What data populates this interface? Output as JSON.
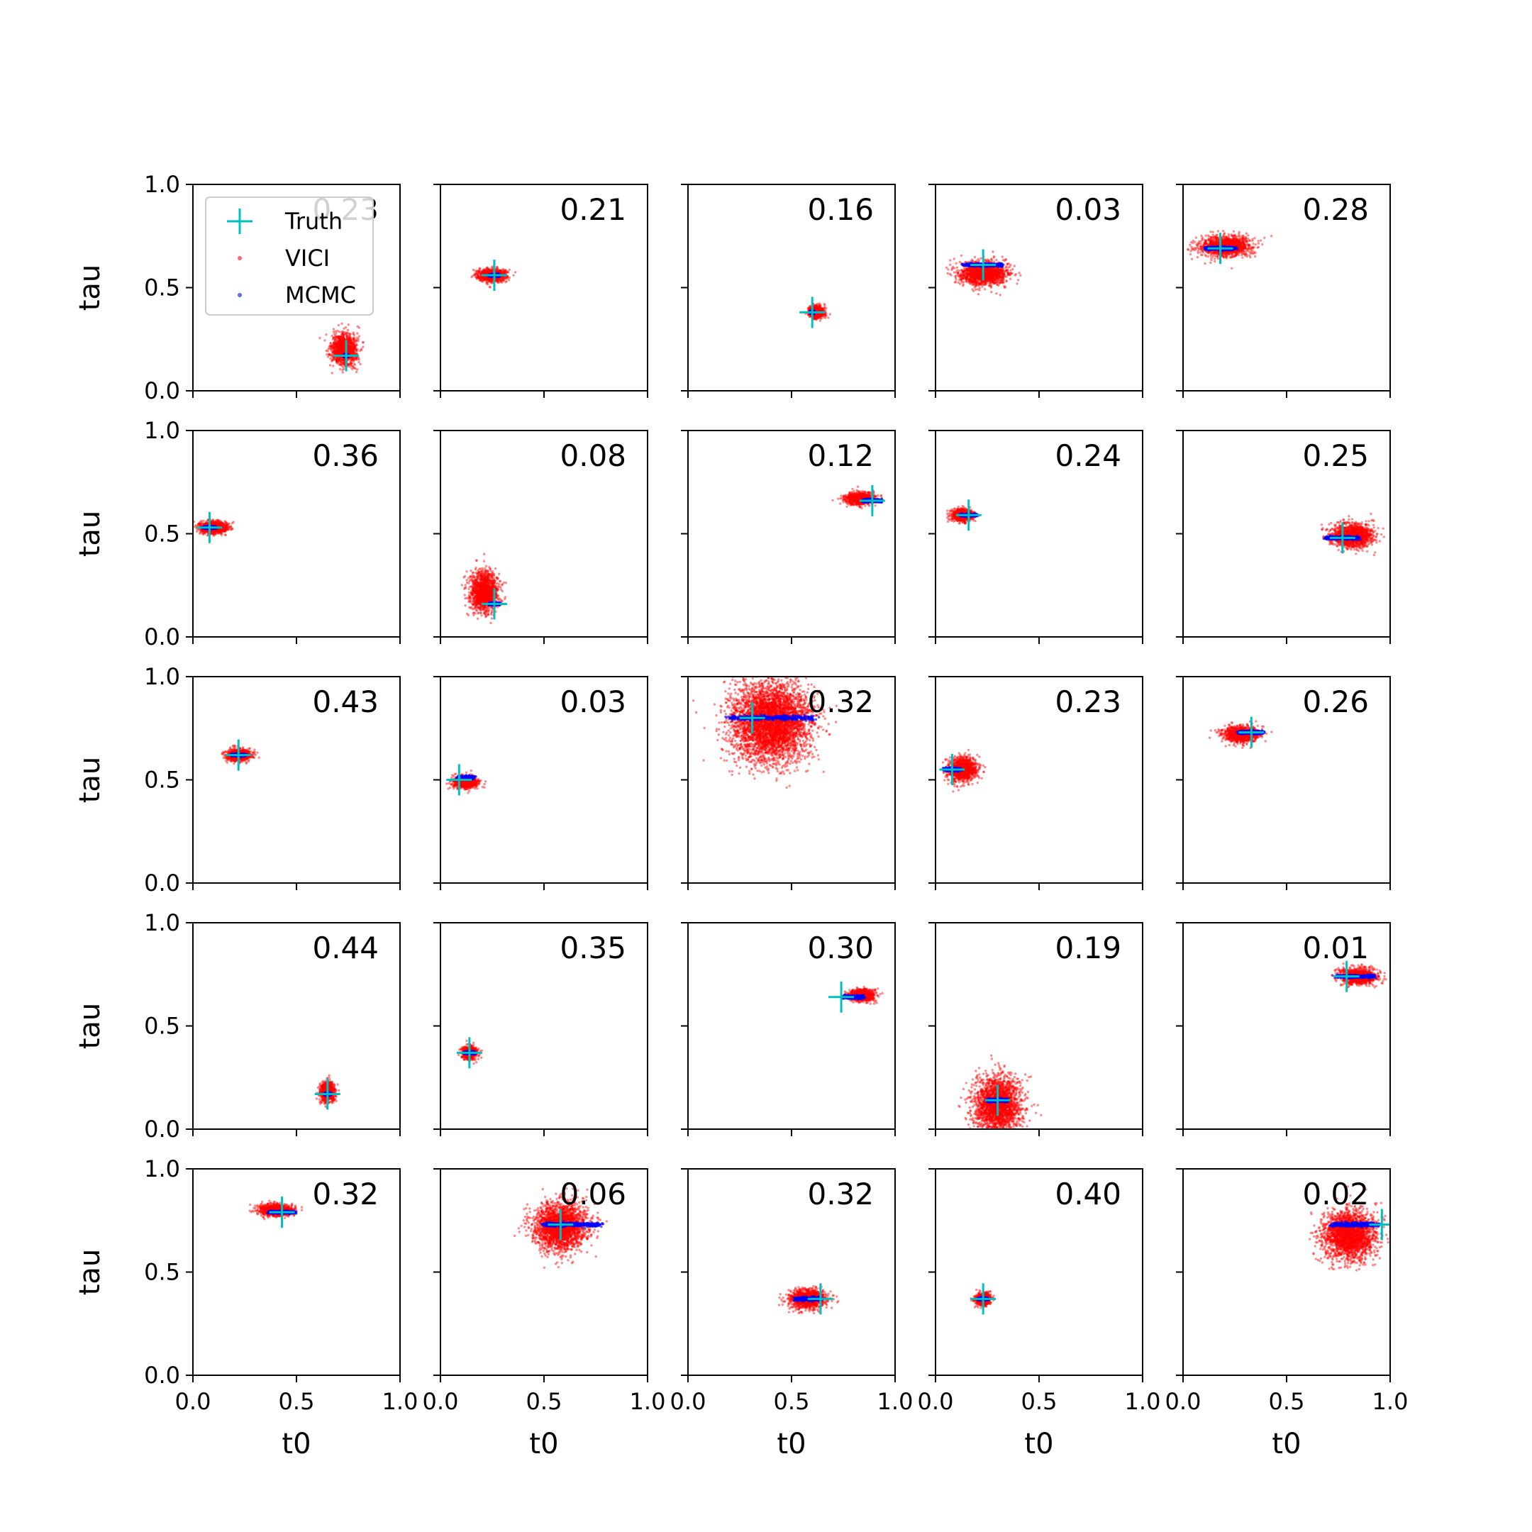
{
  "legend": {
    "placement": "top-left",
    "entries": [
      {
        "label": "Truth",
        "color": "#00bfbf",
        "marker": "plus"
      },
      {
        "label": "VICI",
        "color": "#ff0000",
        "marker": "dot"
      },
      {
        "label": "MCMC",
        "color": "#0000ff",
        "marker": "dot"
      }
    ]
  },
  "chart_data": {
    "type": "scatter",
    "layout": {
      "rows": 5,
      "cols": 5
    },
    "xlabel": "t0",
    "ylabel": "tau",
    "xlim": [
      0.0,
      1.0
    ],
    "ylim": [
      0.0,
      1.0
    ],
    "xticks": [
      "0.0",
      "0.5",
      "1.0"
    ],
    "yticks": [
      "0.0",
      "0.5",
      "1.0"
    ],
    "series_names": [
      "Truth",
      "VICI",
      "MCMC"
    ],
    "colors": {
      "truth": "#00bfbf",
      "vici": "#ff0000",
      "mcmc": "#0000ff"
    },
    "panels": [
      {
        "annotation": "0.23",
        "truth": [
          0.74,
          0.17
        ],
        "vici": {
          "center": [
            0.73,
            0.2
          ],
          "spread": [
            0.07,
            0.04
          ]
        },
        "mcmc": {
          "center": [
            0.74,
            0.17
          ],
          "spread": [
            0.02,
            0.003
          ]
        }
      },
      {
        "annotation": "0.21",
        "truth": [
          0.26,
          0.56
        ],
        "vici": {
          "center": [
            0.25,
            0.56
          ],
          "spread": [
            0.08,
            0.015
          ]
        },
        "mcmc": {
          "center": [
            0.26,
            0.56
          ],
          "spread": [
            0.05,
            0.003
          ]
        }
      },
      {
        "annotation": "0.16",
        "truth": [
          0.6,
          0.38
        ],
        "vici": {
          "center": [
            0.62,
            0.38
          ],
          "spread": [
            0.04,
            0.015
          ]
        },
        "mcmc": {
          "center": [
            0.6,
            0.38
          ],
          "spread": [
            0.02,
            0.003
          ]
        }
      },
      {
        "annotation": "0.03",
        "truth": [
          0.23,
          0.61
        ],
        "vici": {
          "center": [
            0.23,
            0.57
          ],
          "spread": [
            0.14,
            0.03
          ]
        },
        "mcmc": {
          "center": [
            0.23,
            0.61
          ],
          "spread": [
            0.18,
            0.004
          ]
        }
      },
      {
        "annotation": "0.28",
        "truth": [
          0.18,
          0.69
        ],
        "vici": {
          "center": [
            0.2,
            0.7
          ],
          "spread": [
            0.14,
            0.025
          ]
        },
        "mcmc": {
          "center": [
            0.18,
            0.69
          ],
          "spread": [
            0.14,
            0.004
          ]
        }
      },
      {
        "annotation": "0.36",
        "truth": [
          0.08,
          0.53
        ],
        "vici": {
          "center": [
            0.1,
            0.53
          ],
          "spread": [
            0.08,
            0.015
          ]
        },
        "mcmc": {
          "center": [
            0.08,
            0.53
          ],
          "spread": [
            0.06,
            0.003
          ]
        }
      },
      {
        "annotation": "0.08",
        "truth": [
          0.26,
          0.16
        ],
        "vici": {
          "center": [
            0.21,
            0.22
          ],
          "spread": [
            0.08,
            0.05
          ]
        },
        "mcmc": {
          "center": [
            0.26,
            0.16
          ],
          "spread": [
            0.05,
            0.003
          ]
        }
      },
      {
        "annotation": "0.12",
        "truth": [
          0.89,
          0.66
        ],
        "vici": {
          "center": [
            0.83,
            0.67
          ],
          "spread": [
            0.08,
            0.015
          ]
        },
        "mcmc": {
          "center": [
            0.89,
            0.66
          ],
          "spread": [
            0.09,
            0.004
          ]
        }
      },
      {
        "annotation": "0.24",
        "truth": [
          0.16,
          0.59
        ],
        "vici": {
          "center": [
            0.13,
            0.59
          ],
          "spread": [
            0.06,
            0.015
          ]
        },
        "mcmc": {
          "center": [
            0.16,
            0.59
          ],
          "spread": [
            0.08,
            0.003
          ]
        }
      },
      {
        "annotation": "0.25",
        "truth": [
          0.77,
          0.48
        ],
        "vici": {
          "center": [
            0.82,
            0.49
          ],
          "spread": [
            0.12,
            0.03
          ]
        },
        "mcmc": {
          "center": [
            0.77,
            0.48
          ],
          "spread": [
            0.16,
            0.004
          ]
        }
      },
      {
        "annotation": "0.43",
        "truth": [
          0.22,
          0.62
        ],
        "vici": {
          "center": [
            0.22,
            0.62
          ],
          "spread": [
            0.07,
            0.015
          ]
        },
        "mcmc": {
          "center": [
            0.22,
            0.62
          ],
          "spread": [
            0.07,
            0.003
          ]
        }
      },
      {
        "annotation": "0.03",
        "truth": [
          0.09,
          0.5
        ],
        "vici": {
          "center": [
            0.12,
            0.49
          ],
          "spread": [
            0.07,
            0.015
          ]
        },
        "mcmc": {
          "center": [
            0.12,
            0.51
          ],
          "spread": [
            0.08,
            0.004
          ]
        }
      },
      {
        "annotation": "0.32",
        "truth": [
          0.31,
          0.8
        ],
        "vici": {
          "center": [
            0.4,
            0.78
          ],
          "spread": [
            0.22,
            0.1
          ]
        },
        "mcmc": {
          "center": [
            0.4,
            0.8
          ],
          "spread": [
            0.4,
            0.006
          ]
        }
      },
      {
        "annotation": "0.23",
        "truth": [
          0.08,
          0.55
        ],
        "vici": {
          "center": [
            0.13,
            0.55
          ],
          "spread": [
            0.08,
            0.03
          ]
        },
        "mcmc": {
          "center": [
            0.08,
            0.55
          ],
          "spread": [
            0.08,
            0.004
          ]
        }
      },
      {
        "annotation": "0.26",
        "truth": [
          0.33,
          0.73
        ],
        "vici": {
          "center": [
            0.28,
            0.72
          ],
          "spread": [
            0.1,
            0.02
          ]
        },
        "mcmc": {
          "center": [
            0.33,
            0.73
          ],
          "spread": [
            0.12,
            0.004
          ]
        }
      },
      {
        "annotation": "0.44",
        "truth": [
          0.65,
          0.17
        ],
        "vici": {
          "center": [
            0.65,
            0.18
          ],
          "spread": [
            0.04,
            0.025
          ]
        },
        "mcmc": {
          "center": [
            0.65,
            0.17
          ],
          "spread": [
            0.03,
            0.003
          ]
        }
      },
      {
        "annotation": "0.35",
        "truth": [
          0.14,
          0.37
        ],
        "vici": {
          "center": [
            0.14,
            0.37
          ],
          "spread": [
            0.04,
            0.015
          ]
        },
        "mcmc": {
          "center": [
            0.14,
            0.37
          ],
          "spread": [
            0.05,
            0.003
          ]
        }
      },
      {
        "annotation": "0.30",
        "truth": [
          0.74,
          0.64
        ],
        "vici": {
          "center": [
            0.84,
            0.65
          ],
          "spread": [
            0.07,
            0.015
          ]
        },
        "mcmc": {
          "center": [
            0.8,
            0.64
          ],
          "spread": [
            0.1,
            0.004
          ]
        }
      },
      {
        "annotation": "0.19",
        "truth": [
          0.3,
          0.14
        ],
        "vici": {
          "center": [
            0.3,
            0.12
          ],
          "spread": [
            0.13,
            0.07
          ]
        },
        "mcmc": {
          "center": [
            0.3,
            0.14
          ],
          "spread": [
            0.1,
            0.004
          ]
        }
      },
      {
        "annotation": "0.01",
        "truth": [
          0.79,
          0.74
        ],
        "vici": {
          "center": [
            0.85,
            0.74
          ],
          "spread": [
            0.1,
            0.02
          ]
        },
        "mcmc": {
          "center": [
            0.83,
            0.74
          ],
          "spread": [
            0.18,
            0.004
          ]
        }
      },
      {
        "annotation": "0.32",
        "truth": [
          0.43,
          0.79
        ],
        "vici": {
          "center": [
            0.4,
            0.8
          ],
          "spread": [
            0.1,
            0.015
          ]
        },
        "mcmc": {
          "center": [
            0.43,
            0.79
          ],
          "spread": [
            0.13,
            0.003
          ]
        }
      },
      {
        "annotation": "0.06",
        "truth": [
          0.58,
          0.73
        ],
        "vici": {
          "center": [
            0.58,
            0.72
          ],
          "spread": [
            0.15,
            0.06
          ]
        },
        "mcmc": {
          "center": [
            0.63,
            0.73
          ],
          "spread": [
            0.27,
            0.005
          ]
        }
      },
      {
        "annotation": "0.32",
        "truth": [
          0.64,
          0.37
        ],
        "vici": {
          "center": [
            0.58,
            0.37
          ],
          "spread": [
            0.1,
            0.025
          ]
        },
        "mcmc": {
          "center": [
            0.58,
            0.37
          ],
          "spread": [
            0.12,
            0.004
          ]
        }
      },
      {
        "annotation": "0.40",
        "truth": [
          0.23,
          0.37
        ],
        "vici": {
          "center": [
            0.23,
            0.37
          ],
          "spread": [
            0.04,
            0.015
          ]
        },
        "mcmc": {
          "center": [
            0.23,
            0.37
          ],
          "spread": [
            0.05,
            0.003
          ]
        }
      },
      {
        "annotation": "0.02",
        "truth": [
          0.96,
          0.73
        ],
        "vici": {
          "center": [
            0.8,
            0.68
          ],
          "spread": [
            0.15,
            0.06
          ]
        },
        "mcmc": {
          "center": [
            0.83,
            0.73
          ],
          "spread": [
            0.22,
            0.005
          ]
        }
      }
    ]
  }
}
